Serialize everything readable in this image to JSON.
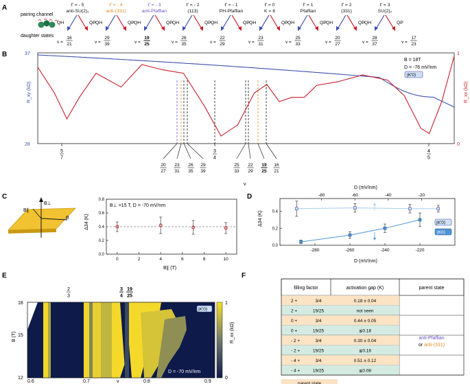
{
  "panel_labels": [
    "A",
    "B",
    "C",
    "D",
    "E",
    "F"
  ],
  "panelA": {
    "legend_top": "pairing channel",
    "legend_bottom": "daughter states",
    "channels": [
      {
        "ell": "ℓ' = - 5",
        "name": "anti-SU(2)₂",
        "color": "#111111",
        "left": "QH",
        "right": "QP",
        "vleft": [
          "16",
          "21"
        ],
        "vright": [
          "29",
          "39"
        ]
      },
      {
        "ell": "ℓ' = - 4",
        "name": "anti-(331)",
        "color": "#e08a1e",
        "left": "QH",
        "right": "QP",
        "vleft": [
          "19",
          "25"
        ],
        "vright": [
          "26",
          "35"
        ]
      },
      {
        "ell": "ℓ' = - 3",
        "name": "anti-Pfaffian",
        "color": "#6a4fc0",
        "left": "QH",
        "right": "QP",
        "vleft": [
          "19",
          "25"
        ],
        "vright": [
          "26",
          "35"
        ]
      },
      {
        "ell": "ℓ' = - 2",
        "name": "(113)",
        "color": "#111111",
        "left": "QH",
        "right": "QP",
        "vleft": [
          "22",
          "29"
        ],
        "vright": [
          "23",
          "31"
        ]
      },
      {
        "ell": "ℓ' = - 1",
        "name": "PH-Pfaffian",
        "color": "#111111",
        "left": "QH",
        "right": "QP",
        "vleft": [
          "22",
          "29"
        ],
        "vright": [
          "23",
          "31"
        ]
      },
      {
        "ell": "ℓ' = 0",
        "name": "K = 8",
        "color": "#111111",
        "left": "QH",
        "right": "QP",
        "vleft": [
          "25",
          "33"
        ],
        "vright": [
          "20",
          "27"
        ]
      },
      {
        "ell": "ℓ' = 1",
        "name": "Pfaffian",
        "color": "#111111",
        "left": "QH",
        "right": "QP",
        "vleft": [
          "25",
          "33"
        ],
        "vright": [
          "20",
          "27"
        ]
      },
      {
        "ell": "ℓ' = 2",
        "name": "(331)",
        "color": "#111111",
        "left": "QH",
        "right": "QP",
        "vleft": [
          "28",
          "37"
        ],
        "vright": [
          "17",
          "23"
        ]
      },
      {
        "ell": "ℓ' = 3",
        "name": "SU(2)₂",
        "color": "#111111",
        "left": "QH",
        "right": "QP",
        "vleft": [
          "28",
          "37"
        ],
        "vright": [
          "17",
          "23"
        ]
      }
    ],
    "daughter_row": [
      {
        "n": "16",
        "d": "21",
        "bold": false
      },
      {
        "n": "29",
        "d": "39",
        "bold": false
      },
      {
        "n": "19",
        "d": "25",
        "bold": true
      },
      {
        "n": "26",
        "d": "35",
        "bold": false
      },
      {
        "n": "22",
        "d": "29",
        "bold": false
      },
      {
        "n": "23",
        "d": "31",
        "bold": false
      },
      {
        "n": "25",
        "d": "33",
        "bold": false
      },
      {
        "n": "20",
        "d": "27",
        "bold": false
      },
      {
        "n": "28",
        "d": "37",
        "bold": false
      },
      {
        "n": "17",
        "d": "23",
        "bold": false
      }
    ],
    "v_prefix": "v ="
  },
  "panelB": {
    "ylabel_left": "R_xy (kΩ)",
    "ylabel_right": "R_xx (kΩ)",
    "y_left_ticks": [
      "37",
      "28"
    ],
    "y_right_ticks": [
      "1",
      "0"
    ],
    "params": [
      "B = 18T",
      "D = -76 mV/nm"
    ],
    "badge": "|K'0⟩",
    "xlabel": "v",
    "fractions_major": [
      {
        "n": "5",
        "d": "7",
        "x": 0.714
      },
      {
        "n": "3",
        "d": "4",
        "x": 0.75
      },
      {
        "n": "4",
        "d": "5",
        "x": 0.8
      }
    ],
    "fractions_minor": [
      {
        "n": "20",
        "d": "27",
        "bold": false
      },
      {
        "n": "23",
        "d": "31",
        "bold": false
      },
      {
        "n": "26",
        "d": "35",
        "bold": false
      },
      {
        "n": "29",
        "d": "39",
        "bold": false
      },
      {
        "n": "25",
        "d": "33",
        "bold": false
      },
      {
        "n": "22",
        "d": "29",
        "bold": false
      },
      {
        "n": "19",
        "d": "25",
        "bold": true
      },
      {
        "n": "16",
        "d": "21",
        "bold": false
      }
    ]
  },
  "panelC": {
    "title": "B⊥ =15 T, D = -70 mV/nm",
    "ylabel": "Δ34 (K)",
    "xlabel": "B∥ (T)",
    "xticks": [
      "0",
      "2",
      "4",
      "6",
      "8",
      "10"
    ],
    "yticks": [
      "0.0",
      "0.2",
      "0.4",
      "0.6",
      "0.8"
    ],
    "diagram_labels": [
      "B⊥",
      "B∥",
      "B"
    ],
    "chart_data": {
      "type": "scatter",
      "x": [
        0,
        4,
        7,
        10
      ],
      "y": [
        0.4,
        0.42,
        0.39,
        0.38
      ],
      "yerr": [
        0.07,
        0.12,
        0.1,
        0.08
      ],
      "xlim": [
        -1,
        11
      ],
      "ylim": [
        0,
        0.8
      ]
    }
  },
  "panelD": {
    "top_xlabel": "D (mV/nm)",
    "bottom_xlabel": "D (mV/nm)",
    "ylabel": "Δ34 (K)",
    "top_ticks": [
      "-80",
      "-60",
      "-40",
      "-20"
    ],
    "bottom_ticks": [
      "-280",
      "-260",
      "-240",
      "-220"
    ],
    "yticks": [
      "0.0",
      "0.2",
      "0.4"
    ],
    "badges": [
      "|K'0⟩",
      "|K0⟩"
    ],
    "chart_data": {
      "type": "scatter",
      "series": [
        {
          "name": "|K'0⟩",
          "x_top": [
            -95,
            -60,
            -27,
            -10
          ],
          "y": [
            0.43,
            0.44,
            0.43,
            0.43
          ],
          "yerr": [
            0.09,
            0.05,
            0.05,
            0.04
          ]
        },
        {
          "name": "|K0⟩",
          "x_bottom": [
            -288,
            -260,
            -240,
            -220
          ],
          "y": [
            0.04,
            0.12,
            0.2,
            0.3
          ],
          "yerr": [
            0.02,
            0.04,
            0.05,
            0.08
          ]
        }
      ],
      "ylim": [
        0,
        0.55
      ]
    }
  },
  "panelE": {
    "ylabel": "B (T)",
    "xlabel": "v",
    "yticks": [
      "18",
      "15",
      "12"
    ],
    "xticks": [
      "0.6",
      "0.7",
      "0.8",
      "0.9"
    ],
    "top_fracs": [
      {
        "n": "2",
        "d": "3",
        "bold": false
      },
      {
        "n": "3",
        "d": "4",
        "bold": true
      },
      {
        "n": "19",
        "d": "25",
        "bold": true
      }
    ],
    "badge": "|K'0⟩",
    "annotation": "D = -70 mV/nm",
    "colorbar_label": "R_xx (kΩ)",
    "colorbar_ticks": [
      "1",
      "0"
    ]
  },
  "panelF": {
    "headers": [
      "filling factor",
      "activation gap (K)",
      "parent state"
    ],
    "rows": [
      {
        "ff": "2 +",
        "frac": "3/4",
        "gap": "0.18 ± 0.04",
        "type": "parent"
      },
      {
        "ff": "2 +",
        "frac": "19/25",
        "gap": "not seen",
        "type": "daughter"
      },
      {
        "ff": "0 +",
        "frac": "3/4",
        "gap": "0.44 ± 0.05",
        "type": "parent"
      },
      {
        "ff": "0 +",
        "frac": "19/25",
        "gap": "≦0.18",
        "type": "daughter"
      },
      {
        "ff": "- 2 +",
        "frac": "3/4",
        "gap": "0.30 ± 0.04",
        "type": "parent"
      },
      {
        "ff": "- 2 +",
        "frac": "19/25",
        "gap": "≦0.16",
        "type": "daughter"
      },
      {
        "ff": "- 4 +",
        "frac": "3/4",
        "gap": "0.51 ± 0.12",
        "type": "parent"
      },
      {
        "ff": "- 4 +",
        "frac": "19/25",
        "gap": "≦0.08",
        "type": "daughter"
      }
    ],
    "parent_state_line1": "anti-Pfaffian",
    "parent_state_line2_prefix": "or",
    "parent_state_line2": "anti-(331)",
    "legend": [
      "parent state",
      "daughter state"
    ]
  },
  "colors": {
    "blue": "#3d4fb0",
    "red": "#c81e2a",
    "orange": "#e08a1e",
    "purple": "#6a4fc0",
    "parent": "#fbe3c4",
    "daughter": "#d4ebe2",
    "light_blue": "#7fb8e6",
    "mid_blue": "#4e94d4",
    "badge": "#cfe0f5"
  }
}
